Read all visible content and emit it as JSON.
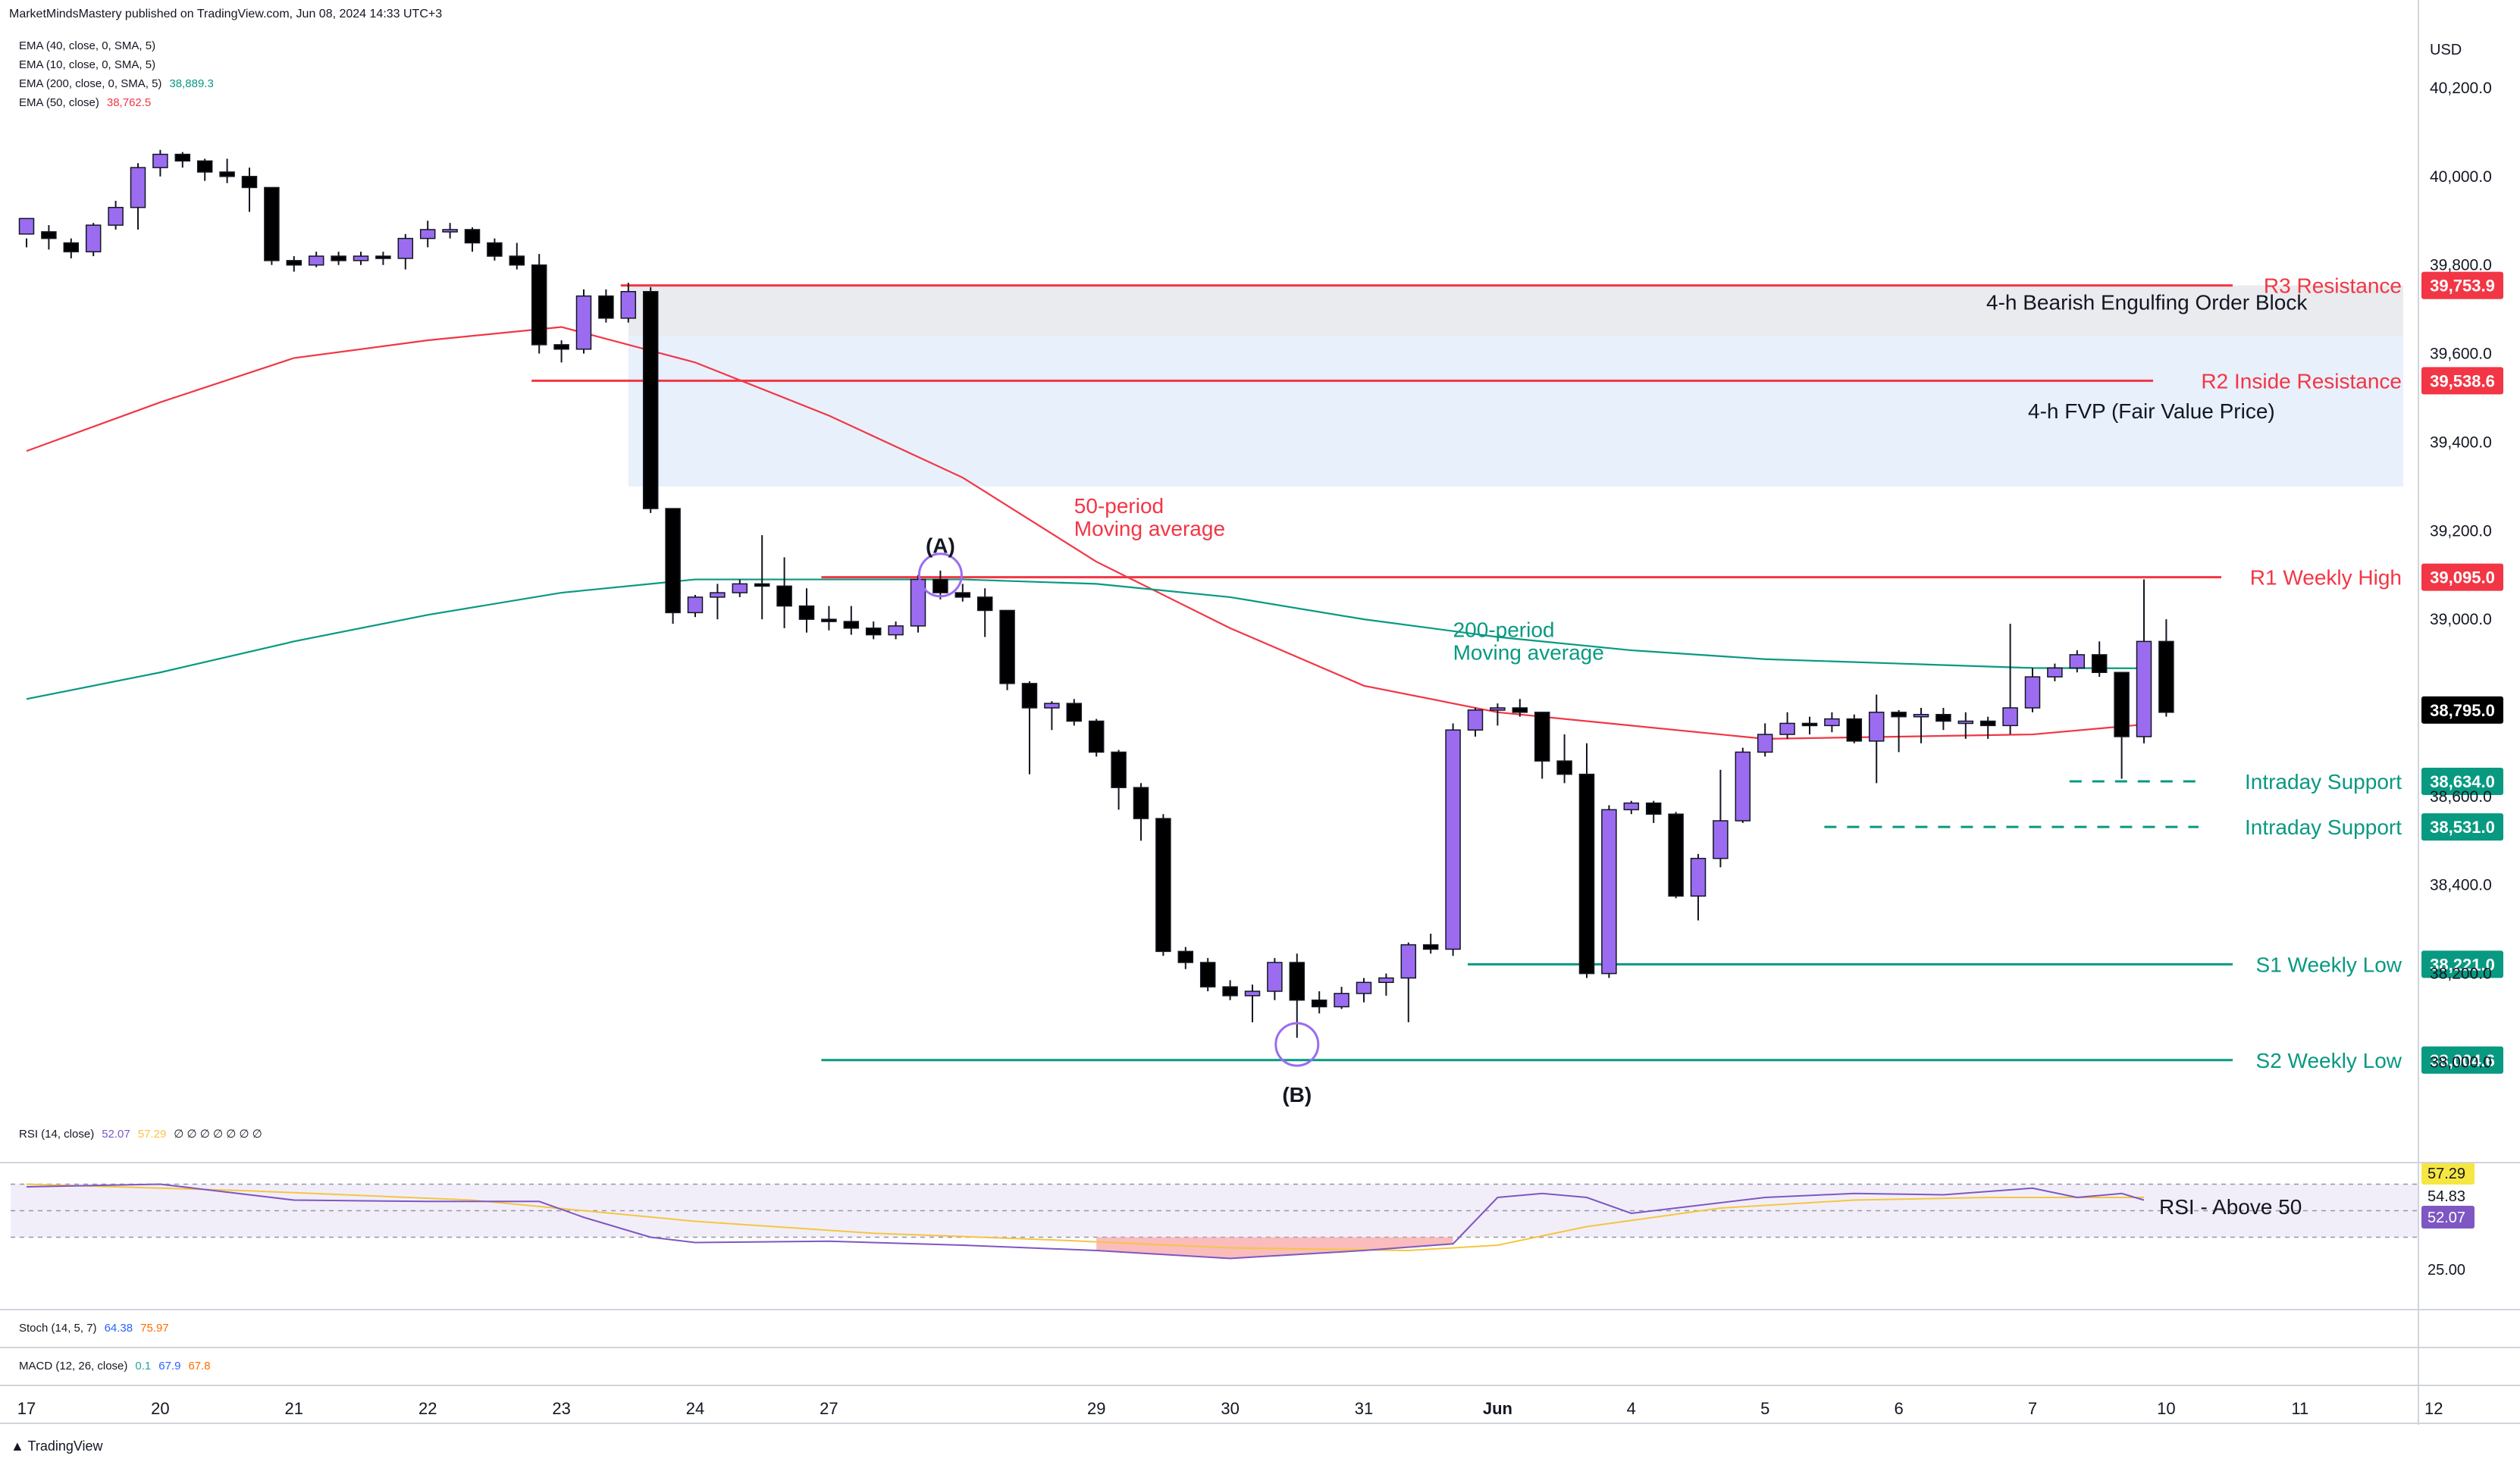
{
  "header": {
    "published": "MarketMindsMastery published on TradingView.com, Jun 08, 2024 14:33 UTC+3"
  },
  "indicators": [
    {
      "label": "EMA (40, close, 0, SMA, 5)",
      "value": "",
      "color": "#131722"
    },
    {
      "label": "EMA (10, close, 0, SMA, 5)",
      "value": "",
      "color": "#131722"
    },
    {
      "label": "EMA (200, close, 0, SMA, 5)",
      "value": "38,889.3",
      "color": "#089981"
    },
    {
      "label": "EMA (50, close)",
      "value": "38,762.5",
      "color": "#f23645"
    }
  ],
  "rsi_legend": {
    "label": "RSI (14, close)",
    "value": "52.07",
    "value2": "57.29",
    "extra": "∅ ∅ ∅ ∅ ∅ ∅ ∅"
  },
  "stoch_legend": {
    "label": "Stoch (14, 5, 7)",
    "value": "64.38",
    "value2": "75.97"
  },
  "macd_legend": {
    "label": "MACD (12, 26, close)",
    "value": "0.1",
    "value2": "67.9",
    "value3": "67.8"
  },
  "footer": {
    "brand": "TradingView"
  },
  "colors": {
    "bull": "#9b6cf0",
    "bear": "#000000",
    "resistance": "#f23645",
    "support": "#089981",
    "ema50": "#f23645",
    "ema200": "#089981",
    "rsi": "#7e57c2",
    "rsi_ma": "#f5c542",
    "ob_zone": "#e9ebee",
    "fvg_zone": "#e8f0fb"
  },
  "chart_data": {
    "type": "candlestick",
    "currency": "USD",
    "y_axis_ticks": [
      40200,
      40000,
      39800,
      39600,
      39400,
      39200,
      39000,
      38800,
      38600,
      38400,
      38200,
      38000
    ],
    "y_axis_tick_labels": [
      "40,200.0",
      "40,000.0",
      "39,800.0",
      "39,600.0",
      "39,400.0",
      "39,200.0",
      "39,000.0",
      "38,800.0",
      "38,600.0",
      "38,400.0",
      "38,200.0",
      "38,000.0"
    ],
    "ylim": [
      37780,
      40330
    ],
    "x_axis_labels": [
      {
        "label": "17",
        "bar": 0
      },
      {
        "label": "20",
        "bar": 6
      },
      {
        "label": "21",
        "bar": 12
      },
      {
        "label": "22",
        "bar": 18
      },
      {
        "label": "23",
        "bar": 24
      },
      {
        "label": "24",
        "bar": 30
      },
      {
        "label": "27",
        "bar": 36
      },
      {
        "label": "29",
        "bar": 48
      },
      {
        "label": "30",
        "bar": 54
      },
      {
        "label": "31",
        "bar": 60
      },
      {
        "label": "Jun",
        "bar": 66
      },
      {
        "label": "4",
        "bar": 72
      },
      {
        "label": "5",
        "bar": 78
      },
      {
        "label": "6",
        "bar": 84
      },
      {
        "label": "7",
        "bar": 90
      },
      {
        "label": "10",
        "bar": 96
      },
      {
        "label": "11",
        "bar": 102
      },
      {
        "label": "12",
        "bar": 108
      }
    ],
    "candles": [
      [
        39870,
        39905,
        39860,
        39840
      ],
      [
        39875,
        39860,
        39890,
        39835
      ],
      [
        39850,
        39830,
        39860,
        39815
      ],
      [
        39830,
        39890,
        39895,
        39820
      ],
      [
        39890,
        39930,
        39945,
        39880
      ],
      [
        39930,
        40020,
        40030,
        39880
      ],
      [
        40020,
        40050,
        40060,
        40000
      ],
      [
        40050,
        40035,
        40055,
        40020
      ],
      [
        40035,
        40010,
        40040,
        39990
      ],
      [
        40010,
        40000,
        40040,
        39985
      ],
      [
        40000,
        39975,
        40020,
        39920
      ],
      [
        39975,
        39810,
        39975,
        39800
      ],
      [
        39810,
        39800,
        39820,
        39785
      ],
      [
        39800,
        39820,
        39830,
        39795
      ],
      [
        39820,
        39810,
        39830,
        39800
      ],
      [
        39810,
        39820,
        39830,
        39800
      ],
      [
        39820,
        39815,
        39830,
        39800
      ],
      [
        39815,
        39860,
        39870,
        39790
      ],
      [
        39860,
        39880,
        39900,
        39840
      ],
      [
        39880,
        39880,
        39895,
        39860
      ],
      [
        39880,
        39850,
        39885,
        39830
      ],
      [
        39850,
        39820,
        39860,
        39810
      ],
      [
        39820,
        39800,
        39850,
        39790
      ],
      [
        39800,
        39620,
        39825,
        39600
      ],
      [
        39620,
        39610,
        39630,
        39580
      ],
      [
        39610,
        39730,
        39745,
        39600
      ],
      [
        39730,
        39680,
        39745,
        39670
      ],
      [
        39680,
        39740,
        39760,
        39670
      ],
      [
        39740,
        39250,
        39750,
        39240
      ],
      [
        39250,
        39015,
        39250,
        38990
      ],
      [
        39015,
        39050,
        39055,
        39005
      ],
      [
        39050,
        39060,
        39080,
        39000
      ],
      [
        39060,
        39080,
        39090,
        39050
      ],
      [
        39080,
        39075,
        39190,
        39000
      ],
      [
        39075,
        39030,
        39140,
        38980
      ],
      [
        39030,
        39000,
        39070,
        38970
      ],
      [
        39000,
        38995,
        39030,
        38975
      ],
      [
        38995,
        38980,
        39030,
        38965
      ],
      [
        38980,
        38965,
        38995,
        38955
      ],
      [
        38965,
        38985,
        38995,
        38955
      ],
      [
        38985,
        39090,
        39100,
        38970
      ],
      [
        39090,
        39060,
        39110,
        39045
      ],
      [
        39060,
        39050,
        39080,
        39040
      ],
      [
        39050,
        39020,
        39070,
        38960
      ],
      [
        39020,
        38855,
        39020,
        38840
      ],
      [
        38855,
        38800,
        38860,
        38650
      ],
      [
        38800,
        38810,
        38815,
        38750
      ],
      [
        38810,
        38770,
        38820,
        38760
      ],
      [
        38770,
        38700,
        38775,
        38690
      ],
      [
        38700,
        38620,
        38705,
        38570
      ],
      [
        38620,
        38550,
        38630,
        38500
      ],
      [
        38550,
        38250,
        38560,
        38240
      ],
      [
        38250,
        38225,
        38260,
        38210
      ],
      [
        38225,
        38170,
        38235,
        38160
      ],
      [
        38170,
        38150,
        38185,
        38140
      ],
      [
        38150,
        38160,
        38175,
        38090
      ],
      [
        38160,
        38225,
        38235,
        38140
      ],
      [
        38225,
        38140,
        38245,
        38055
      ],
      [
        38140,
        38125,
        38160,
        38110
      ],
      [
        38125,
        38155,
        38170,
        38120
      ],
      [
        38155,
        38180,
        38190,
        38135
      ],
      [
        38180,
        38190,
        38200,
        38150
      ],
      [
        38190,
        38265,
        38270,
        38090
      ],
      [
        38265,
        38255,
        38290,
        38245
      ],
      [
        38255,
        38750,
        38765,
        38240
      ],
      [
        38750,
        38795,
        38800,
        38735
      ],
      [
        38795,
        38800,
        38810,
        38760
      ],
      [
        38800,
        38790,
        38820,
        38780
      ],
      [
        38790,
        38680,
        38790,
        38640
      ],
      [
        38680,
        38650,
        38740,
        38630
      ],
      [
        38650,
        38200,
        38720,
        38190
      ],
      [
        38200,
        38570,
        38580,
        38190
      ],
      [
        38570,
        38585,
        38590,
        38560
      ],
      [
        38585,
        38560,
        38590,
        38540
      ],
      [
        38560,
        38375,
        38565,
        38370
      ],
      [
        38375,
        38460,
        38470,
        38320
      ],
      [
        38460,
        38545,
        38660,
        38440
      ],
      [
        38545,
        38700,
        38710,
        38540
      ],
      [
        38700,
        38740,
        38765,
        38690
      ],
      [
        38740,
        38765,
        38790,
        38730
      ],
      [
        38765,
        38760,
        38780,
        38740
      ],
      [
        38760,
        38775,
        38790,
        38745
      ],
      [
        38775,
        38725,
        38785,
        38720
      ],
      [
        38725,
        38790,
        38830,
        38630
      ],
      [
        38790,
        38780,
        38795,
        38700
      ],
      [
        38780,
        38785,
        38800,
        38720
      ],
      [
        38785,
        38770,
        38800,
        38750
      ],
      [
        38770,
        38770,
        38790,
        38730
      ],
      [
        38770,
        38760,
        38780,
        38730
      ],
      [
        38760,
        38800,
        38990,
        38740
      ],
      [
        38800,
        38870,
        38890,
        38790
      ],
      [
        38870,
        38890,
        38900,
        38860
      ],
      [
        38890,
        38920,
        38930,
        38880
      ],
      [
        38920,
        38880,
        38950,
        38870
      ],
      [
        38880,
        38735,
        38880,
        38640
      ],
      [
        38735,
        38950,
        39090,
        38720
      ],
      [
        38950,
        38790,
        39000,
        38780
      ]
    ],
    "ema50": [
      [
        0,
        39380
      ],
      [
        6,
        39490
      ],
      [
        12,
        39590
      ],
      [
        18,
        39630
      ],
      [
        24,
        39660
      ],
      [
        30,
        39580
      ],
      [
        36,
        39460
      ],
      [
        42,
        39320
      ],
      [
        48,
        39130
      ],
      [
        54,
        38980
      ],
      [
        60,
        38850
      ],
      [
        66,
        38790
      ],
      [
        72,
        38760
      ],
      [
        78,
        38730
      ],
      [
        84,
        38735
      ],
      [
        90,
        38740
      ],
      [
        95,
        38762.5
      ]
    ],
    "ema200": [
      [
        0,
        38820
      ],
      [
        6,
        38880
      ],
      [
        12,
        38950
      ],
      [
        18,
        39010
      ],
      [
        24,
        39060
      ],
      [
        30,
        39090
      ],
      [
        36,
        39090
      ],
      [
        42,
        39090
      ],
      [
        48,
        39080
      ],
      [
        54,
        39050
      ],
      [
        60,
        39000
      ],
      [
        66,
        38960
      ],
      [
        72,
        38930
      ],
      [
        78,
        38910
      ],
      [
        84,
        38900
      ],
      [
        90,
        38890
      ],
      [
        95,
        38889.3
      ]
    ],
    "levels": [
      {
        "name": "R3 Resistance",
        "price": 39753.9,
        "label": "39,753.9",
        "color": "#f23645",
        "style": "solid",
        "from_bar": 27
      },
      {
        "name": "R2 Inside Resistance",
        "price": 39538.6,
        "label": "39,538.6",
        "color": "#f23645",
        "style": "solid",
        "from_bar": 23
      },
      {
        "name": "R1 Weekly High",
        "price": 39095.0,
        "label": "39,095.0",
        "color": "#f23645",
        "style": "solid",
        "from_bar": 36
      },
      {
        "name": "Intraday Support",
        "price": 38634.0,
        "label": "38,634.0",
        "color": "#089981",
        "style": "dashed",
        "from_bar": 92
      },
      {
        "name": "Intraday Support",
        "price": 38531.0,
        "label": "38,531.0",
        "color": "#089981",
        "style": "dashed",
        "from_bar": 81
      },
      {
        "name": "S1 Weekly Low",
        "price": 38221.0,
        "label": "38,221.0",
        "color": "#089981",
        "style": "solid",
        "from_bar": 65
      },
      {
        "name": "S2 Weekly Low",
        "price": 38004.6,
        "label": "38,004.6",
        "color": "#089981",
        "style": "solid",
        "from_bar": 36
      }
    ],
    "current_price": {
      "price": 38795.0,
      "label": "38,795.0"
    },
    "zones": [
      {
        "name": "4-h Bearish Engulfing Order Block",
        "top": 39753.9,
        "bottom": 39640,
        "from_bar": 27
      },
      {
        "name": "4-h FVP (Fair Value Price)",
        "top": 39640,
        "bottom": 39300,
        "from_bar": 27
      }
    ],
    "annotations": [
      {
        "text": "(A)",
        "bar": 41,
        "price": 39150,
        "color": "#131722"
      },
      {
        "text": "(B)",
        "bar": 57,
        "price": 37910,
        "color": "#131722"
      },
      {
        "text": "50-period",
        "text2": "Moving average",
        "bar": 47,
        "price": 39240,
        "color": "#f23645"
      },
      {
        "text": "200-period",
        "text2": "Moving average",
        "bar": 64,
        "price": 38960,
        "color": "#089981"
      }
    ],
    "circles": [
      {
        "bar": 41,
        "price": 39100
      },
      {
        "bar": 57,
        "price": 38040
      }
    ],
    "rsi": {
      "ticks": [
        57.29,
        54.83,
        52.07,
        25.0
      ],
      "tick_labels": [
        "57.29",
        "54.83",
        "52.07",
        "25.00"
      ],
      "annotation": "RSI - Above 50",
      "values": [
        [
          0,
          68
        ],
        [
          6,
          70
        ],
        [
          12,
          58
        ],
        [
          18,
          57
        ],
        [
          23,
          57
        ],
        [
          25,
          45
        ],
        [
          28,
          30
        ],
        [
          30,
          26
        ],
        [
          36,
          27
        ],
        [
          42,
          24
        ],
        [
          48,
          20
        ],
        [
          54,
          14
        ],
        [
          56,
          16
        ],
        [
          60,
          20
        ],
        [
          64,
          25
        ],
        [
          66,
          60
        ],
        [
          68,
          63
        ],
        [
          70,
          60
        ],
        [
          72,
          48
        ],
        [
          74,
          52
        ],
        [
          78,
          60
        ],
        [
          82,
          63
        ],
        [
          86,
          62
        ],
        [
          90,
          67
        ],
        [
          92,
          60
        ],
        [
          94,
          63
        ],
        [
          95,
          58
        ]
      ],
      "ma": [
        [
          0,
          70
        ],
        [
          10,
          65
        ],
        [
          20,
          58
        ],
        [
          30,
          42
        ],
        [
          38,
          33
        ],
        [
          46,
          28
        ],
        [
          54,
          22
        ],
        [
          62,
          20
        ],
        [
          66,
          24
        ],
        [
          70,
          38
        ],
        [
          76,
          52
        ],
        [
          82,
          58
        ],
        [
          88,
          60
        ],
        [
          95,
          60
        ]
      ]
    }
  }
}
